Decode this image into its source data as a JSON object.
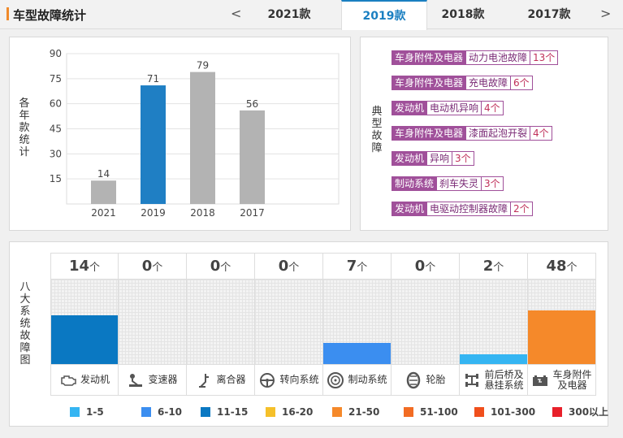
{
  "header": {
    "title": "车型故障统计",
    "prev_arrow": "<",
    "next_arrow": ">",
    "tabs": [
      {
        "label": "2021款",
        "active": false
      },
      {
        "label": "2019款",
        "active": true
      },
      {
        "label": "2018款",
        "active": false
      },
      {
        "label": "2017款",
        "active": false
      }
    ]
  },
  "yearly_chart": {
    "ylabel": "各年款统计",
    "chart_data": {
      "type": "bar",
      "categories": [
        "2021",
        "2019",
        "2018",
        "2017"
      ],
      "values": [
        14,
        71,
        79,
        56
      ],
      "ylim": [
        0,
        90
      ],
      "yticks": [
        15,
        30,
        45,
        60,
        75,
        90
      ],
      "highlight_category": "2019",
      "colors": {
        "highlight": "#1f7fc4",
        "default": "#b3b3b3"
      },
      "grid": true
    }
  },
  "typical_faults": {
    "label": "典型故障",
    "items": [
      {
        "category": "车身附件及电器",
        "fault": "动力电池故障",
        "count": "13个"
      },
      {
        "category": "车身附件及电器",
        "fault": "充电故障",
        "count": "6个"
      },
      {
        "category": "发动机",
        "fault": "电动机异响",
        "count": "4个"
      },
      {
        "category": "车身附件及电器",
        "fault": "漆面起泡开裂",
        "count": "4个"
      },
      {
        "category": "发动机",
        "fault": "异响",
        "count": "3个"
      },
      {
        "category": "制动系统",
        "fault": "刹车失灵",
        "count": "3个"
      },
      {
        "category": "发动机",
        "fault": "电驱动控制器故障",
        "count": "2个"
      }
    ]
  },
  "systems": {
    "label": "八大系统故障图",
    "unit": "个",
    "items": [
      {
        "name": "发动机",
        "count": 14,
        "level": 0.58,
        "color": "#0a78c2",
        "icon": "engine-icon"
      },
      {
        "name": "变速器",
        "count": 0,
        "level": 0,
        "color": "#35b5f2",
        "icon": "gear-shift-icon"
      },
      {
        "name": "离合器",
        "count": 0,
        "level": 0,
        "color": "#35b5f2",
        "icon": "clutch-pedal-icon"
      },
      {
        "name": "转向系统",
        "count": 0,
        "level": 0,
        "color": "#35b5f2",
        "icon": "steering-wheel-icon"
      },
      {
        "name": "制动系统",
        "count": 7,
        "level": 0.25,
        "color": "#3b8ef0",
        "icon": "brake-disc-icon"
      },
      {
        "name": "轮胎",
        "count": 0,
        "level": 0,
        "color": "#35b5f2",
        "icon": "tire-icon"
      },
      {
        "name": "前后桥及悬挂系统",
        "name_lines": [
          "前后桥及",
          "悬挂系统"
        ],
        "count": 2,
        "level": 0.12,
        "color": "#35b5f2",
        "icon": "axle-icon"
      },
      {
        "name": "车身附件及电器",
        "name_lines": [
          "车身附件",
          "及电器"
        ],
        "count": 48,
        "level": 0.63,
        "color": "#f5892a",
        "icon": "battery-icon"
      }
    ]
  },
  "legend": [
    {
      "label": "1-5",
      "color": "#35b5f2"
    },
    {
      "label": "6-10",
      "color": "#3b8ef0"
    },
    {
      "label": "11-15",
      "color": "#0a78c2"
    },
    {
      "label": "16-20",
      "color": "#f5c02a"
    },
    {
      "label": "21-50",
      "color": "#f5892a"
    },
    {
      "label": "51-100",
      "color": "#f26c23"
    },
    {
      "label": "101-300",
      "color": "#f04f1c"
    },
    {
      "label": "300以上",
      "color": "#e8202a"
    }
  ]
}
